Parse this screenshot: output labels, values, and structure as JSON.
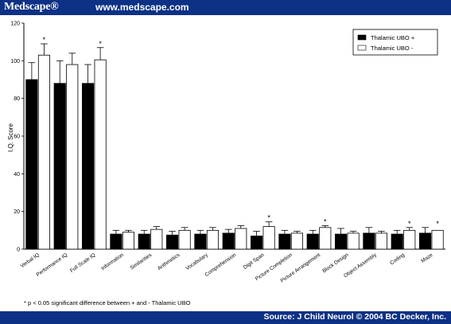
{
  "header": {
    "brand": "Medscape®",
    "url": "www.medscape.com"
  },
  "footer": {
    "source": "Source: J Child Neurol © 2004 BC Decker, Inc."
  },
  "footnote": "*    p < 0.05 significant difference between + and - Thalamic UBO",
  "colors": {
    "header_bg": "#0d3184",
    "series_plus": "#000000",
    "series_minus": "#ffffff"
  },
  "chart_data": {
    "type": "bar",
    "ylabel": "I.Q. Score",
    "ylim": [
      0,
      120
    ],
    "yticks": [
      0,
      20,
      40,
      60,
      80,
      100,
      120
    ],
    "categories": [
      "Verbal IQ",
      "Performance IQ",
      "Full Scale IQ",
      "Information",
      "Similarities",
      "Arithmetics",
      "Vocabulary",
      "Comprehension",
      "Digit Span",
      "Picture Completion",
      "Picture Arrangement",
      "Block Design",
      "Object Assembly",
      "Coding",
      "Maze"
    ],
    "series": [
      {
        "name": "Thalamic UBO +",
        "values": [
          90,
          88,
          88,
          8,
          8,
          7.5,
          8,
          8.5,
          7,
          8,
          8,
          8,
          8.5,
          8,
          8.5
        ],
        "errors": [
          9,
          12,
          10,
          2,
          2,
          2,
          2,
          2,
          2.5,
          2,
          2,
          3,
          3,
          2,
          3
        ]
      },
      {
        "name": "Thalamic UBO -",
        "values": [
          103,
          98,
          100.5,
          9,
          10.5,
          10,
          10,
          11,
          12,
          8.5,
          11.5,
          8.5,
          8.5,
          10,
          10
        ],
        "errors": [
          6,
          6,
          6.5,
          1,
          1.5,
          1.5,
          1.5,
          1.5,
          2.5,
          1,
          1,
          1,
          1,
          1.5,
          0
        ]
      }
    ],
    "significant": [
      "Verbal IQ",
      "Full Scale IQ",
      "Digit Span",
      "Picture Arrangement",
      "Coding",
      "Maze"
    ],
    "legend_position": "top-right"
  }
}
